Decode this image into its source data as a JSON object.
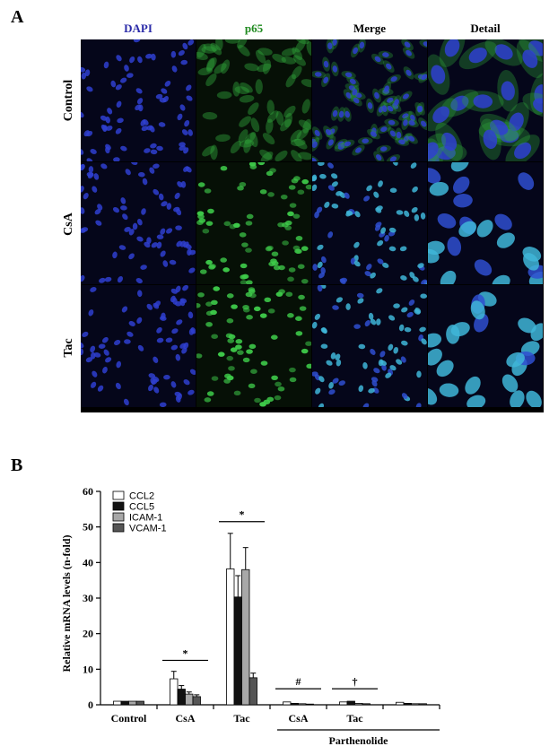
{
  "panel_a": {
    "label": "A",
    "columns": [
      {
        "name": "DAPI",
        "color": "#2a2aa8"
      },
      {
        "name": "p65",
        "color": "#1f8a1f"
      },
      {
        "name": "Merge",
        "color": "#000000"
      },
      {
        "name": "Detail",
        "color": "#000000"
      }
    ],
    "rows": [
      "Control",
      "CsA",
      "Tac"
    ]
  },
  "panel_b": {
    "label": "B"
  },
  "chart_data": {
    "type": "bar",
    "ylabel": "Relative mRNA levels (n-fold)",
    "ylim": [
      0,
      60
    ],
    "yticks": [
      0,
      10,
      20,
      30,
      40,
      50,
      60
    ],
    "categories": [
      "Control",
      "CsA",
      "Tac",
      "CsA",
      "Tac",
      ""
    ],
    "group_label": "Parthenolide",
    "series": [
      {
        "name": "CCL2",
        "color": "#ffffff",
        "values": [
          1.0,
          7.3,
          38.2,
          0.8,
          0.8,
          0.7
        ],
        "errors": [
          0.1,
          2.1,
          10.0,
          0.1,
          0.1,
          0.1
        ]
      },
      {
        "name": "CCL5",
        "color": "#111111",
        "values": [
          1.0,
          4.4,
          30.3,
          0.4,
          1.0,
          0.4
        ],
        "errors": [
          0.1,
          1.0,
          6.0,
          0.1,
          0.1,
          0.1
        ]
      },
      {
        "name": "ICAM-1",
        "color": "#a8a8a8",
        "values": [
          1.0,
          3.0,
          38.0,
          0.3,
          0.4,
          0.3
        ],
        "errors": [
          0.1,
          0.6,
          6.2,
          0.1,
          0.1,
          0.1
        ]
      },
      {
        "name": "VCAM-1",
        "color": "#555555",
        "values": [
          1.0,
          2.3,
          7.6,
          0.2,
          0.3,
          0.3
        ],
        "errors": [
          0.1,
          0.5,
          1.3,
          0.1,
          0.1,
          0.1
        ]
      }
    ],
    "annotations": [
      {
        "text": "*",
        "group_start": 1,
        "group_end": 1,
        "y": 12.5
      },
      {
        "text": "*",
        "group_start": 2,
        "group_end": 2,
        "y": 51.5
      },
      {
        "text": "#",
        "group_start": 3,
        "group_end": 3,
        "y": 4.5
      },
      {
        "text": "†",
        "group_start": 4,
        "group_end": 4,
        "y": 4.5
      }
    ]
  }
}
